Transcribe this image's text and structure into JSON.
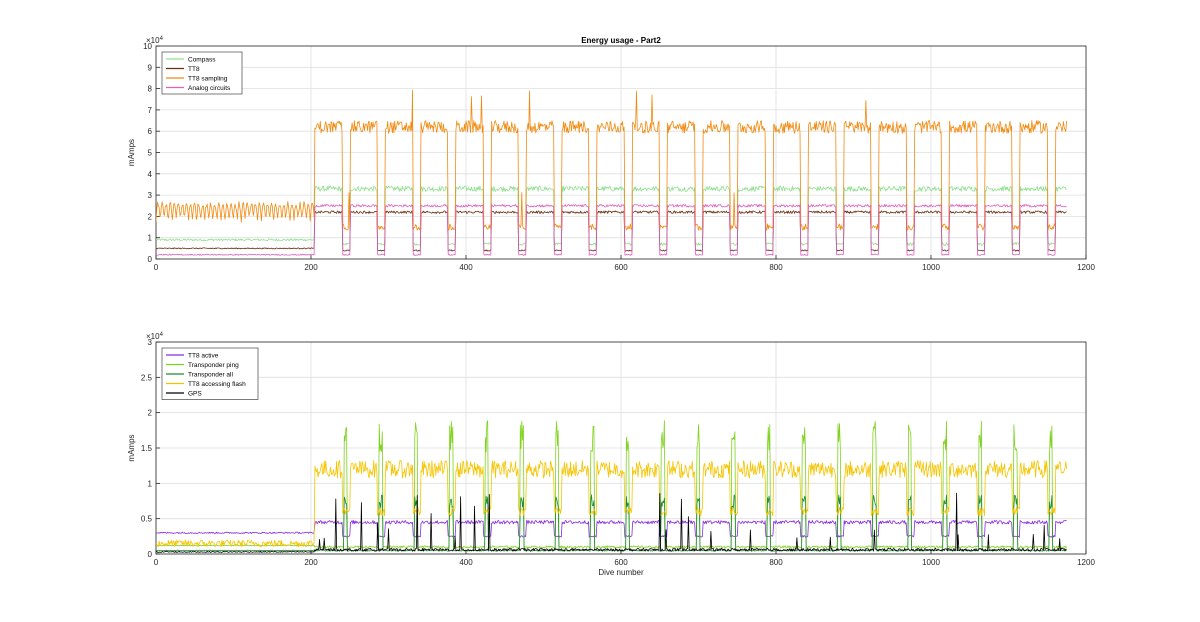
{
  "chart_data": [
    {
      "type": "line",
      "title": "Energy usage - Part2",
      "xlabel": "",
      "ylabel": "mAmps",
      "xlim": [
        0,
        1200
      ],
      "ylim": [
        0,
        100000
      ],
      "xticks": [
        "0",
        "200",
        "400",
        "600",
        "800",
        "1000",
        "1200"
      ],
      "yticks": [
        "0",
        "1",
        "2",
        "3",
        "4",
        "5",
        "6",
        "7",
        "8",
        "9",
        "10"
      ],
      "exponent": "×10",
      "exponent_power": "4",
      "grid": true,
      "legend_position": "top-left",
      "series": [
        {
          "name": "Compass",
          "color": "#8fe08f",
          "base_first": 9000,
          "base_second": 33000,
          "dip": 7000,
          "noise": 2500
        },
        {
          "name": "TT8",
          "color": "#6b2e0e",
          "base_first": 5000,
          "base_second": 22000,
          "dip": 4000,
          "noise": 1200
        },
        {
          "name": "TT8 sampling",
          "color": "#f28a10",
          "base_first": 18000,
          "base_second": 62000,
          "dip": 15000,
          "noise": 6000
        },
        {
          "name": "Analog circuits",
          "color": "#e060c0",
          "base_first": 2000,
          "base_second": 25000,
          "dip": 2000,
          "noise": 1200
        }
      ]
    },
    {
      "type": "line",
      "title": "",
      "xlabel": "Dive number",
      "ylabel": "mAmps",
      "xlim": [
        0,
        1200
      ],
      "ylim": [
        0,
        30000
      ],
      "xticks": [
        "0",
        "200",
        "400",
        "600",
        "800",
        "1000",
        "1200"
      ],
      "yticks": [
        "0",
        "0.5",
        "1",
        "1.5",
        "2",
        "2.5",
        "3"
      ],
      "exponent": "×10",
      "exponent_power": "4",
      "grid": true,
      "legend_position": "top-left",
      "series": [
        {
          "name": "TT8 active",
          "color": "#8a2be2",
          "base_first": 3000,
          "base_second": 4500,
          "dip": 2500,
          "noise": 500
        },
        {
          "name": "Transponder ping",
          "color": "#7fd21e",
          "base_first": 1200,
          "base_second": 1000,
          "peak": 18000,
          "noise": 300
        },
        {
          "name": "Transponder all",
          "color": "#1e8c2e",
          "base_first": 500,
          "base_second": 500,
          "peak": 8000,
          "noise": 200
        },
        {
          "name": "TT8 accessing flash",
          "color": "#f5c400",
          "base_first": 1500,
          "base_second": 12000,
          "dip": 6000,
          "noise": 2500
        },
        {
          "name": "GPS",
          "color": "#000000",
          "base_first": 300,
          "base_second": 600,
          "noise": 400
        }
      ]
    }
  ]
}
